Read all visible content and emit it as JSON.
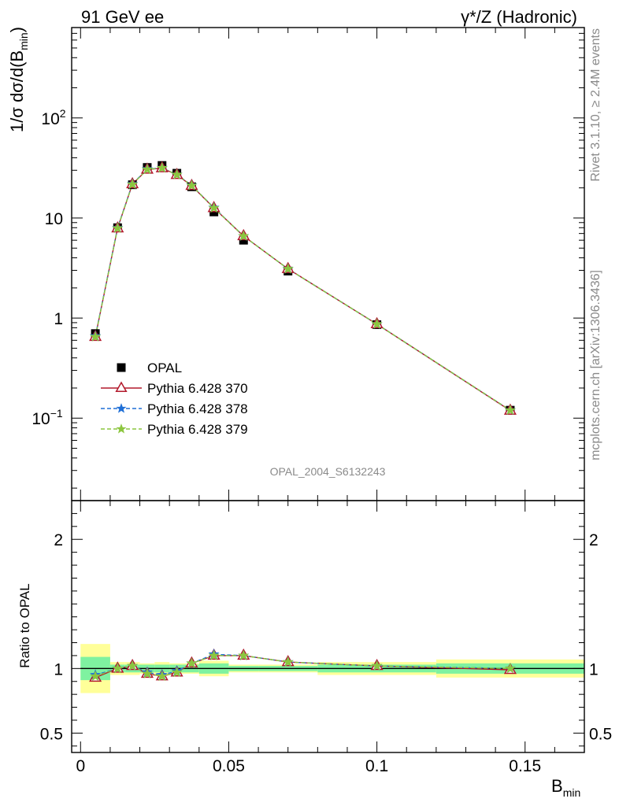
{
  "header": {
    "left": "91 GeV ee",
    "right": "γ*/Z (Hadronic)"
  },
  "side_text": {
    "upper": "Rivet 3.1.10, ≥ 2.4M events",
    "lower": "mcplots.cern.ch [arXiv:1306.3436]"
  },
  "watermark": "OPAL_2004_S6132243",
  "chart_data": [
    {
      "type": "scatter",
      "title": "",
      "ylabel": "1/σ dσ/d(B_min)",
      "yscale": "log",
      "ylim": [
        0.015,
        800
      ],
      "xlim": [
        -0.003,
        0.17
      ],
      "yticks": [
        {
          "value": 100,
          "label": "10",
          "sup": "2"
        },
        {
          "value": 10,
          "label": "10",
          "sup": ""
        },
        {
          "value": 1,
          "label": "1",
          "sup": ""
        },
        {
          "value": 0.1,
          "label": "10",
          "sup": "−1"
        }
      ],
      "legend_position": "middle-left",
      "x": [
        0.005,
        0.0125,
        0.0175,
        0.0225,
        0.0275,
        0.0325,
        0.0375,
        0.045,
        0.055,
        0.07,
        0.1,
        0.145
      ],
      "series": [
        {
          "name": "OPAL",
          "color": "#000000",
          "marker": "square",
          "line": "none",
          "values": [
            0.7,
            8.0,
            21.5,
            32.0,
            33.5,
            28.0,
            20.5,
            11.5,
            6.0,
            2.95,
            0.86,
            0.12
          ]
        },
        {
          "name": "Pythia 6.428 370",
          "color": "#b2182b",
          "marker": "triangle-open",
          "line": "solid",
          "values": [
            0.65,
            7.9,
            21.8,
            30.5,
            31.5,
            27.0,
            21.0,
            12.6,
            6.6,
            3.1,
            0.87,
            0.119
          ]
        },
        {
          "name": "Pythia 6.428 378",
          "color": "#1f6fd6",
          "marker": "star",
          "line": "dashed",
          "values": [
            0.66,
            7.95,
            21.9,
            30.8,
            31.7,
            27.2,
            21.2,
            12.7,
            6.6,
            3.1,
            0.87,
            0.12
          ]
        },
        {
          "name": "Pythia 6.428 379",
          "color": "#8cc63f",
          "marker": "star",
          "line": "dashed",
          "values": [
            0.65,
            7.9,
            21.7,
            30.6,
            31.6,
            27.1,
            21.1,
            12.6,
            6.6,
            3.1,
            0.87,
            0.12
          ]
        }
      ]
    },
    {
      "type": "scatter",
      "ylabel": "Ratio to OPAL",
      "xlabel": "B_min",
      "ylim": [
        0.35,
        2.3
      ],
      "xlim": [
        -0.003,
        0.17
      ],
      "yticks": [
        0.5,
        1,
        2
      ],
      "xticks": [
        0,
        0.05,
        0.1,
        0.15
      ],
      "x": [
        0.005,
        0.0125,
        0.0175,
        0.0225,
        0.0275,
        0.0325,
        0.0375,
        0.045,
        0.055,
        0.07,
        0.1,
        0.145
      ],
      "bins": [
        [
          0,
          0.01
        ],
        [
          0.01,
          0.015
        ],
        [
          0.015,
          0.02
        ],
        [
          0.02,
          0.025
        ],
        [
          0.025,
          0.03
        ],
        [
          0.03,
          0.035
        ],
        [
          0.035,
          0.04
        ],
        [
          0.04,
          0.05
        ],
        [
          0.05,
          0.06
        ],
        [
          0.06,
          0.08
        ],
        [
          0.08,
          0.12
        ],
        [
          0.12,
          0.17
        ]
      ],
      "band_stat": [
        0.09,
        0.03,
        0.03,
        0.03,
        0.03,
        0.03,
        0.03,
        0.04,
        0.02,
        0.02,
        0.03,
        0.04
      ],
      "band_total": [
        0.19,
        0.05,
        0.05,
        0.04,
        0.05,
        0.04,
        0.04,
        0.06,
        0.03,
        0.03,
        0.05,
        0.07
      ],
      "reference": 1,
      "series": [
        {
          "name": "Pythia 6.428 370",
          "color": "#b2182b",
          "marker": "triangle-open",
          "line": "solid",
          "values": [
            0.93,
            1.0,
            1.02,
            0.96,
            0.94,
            0.97,
            1.04,
            1.1,
            1.1,
            1.05,
            1.02,
            0.99
          ]
        },
        {
          "name": "Pythia 6.428 378",
          "color": "#1f6fd6",
          "marker": "star",
          "line": "dashed",
          "values": [
            0.95,
            1.0,
            1.02,
            0.97,
            0.95,
            0.98,
            1.04,
            1.11,
            1.1,
            1.05,
            1.02,
            1.0
          ]
        },
        {
          "name": "Pythia 6.428 379",
          "color": "#8cc63f",
          "marker": "star",
          "line": "dashed",
          "values": [
            0.94,
            1.0,
            1.02,
            0.96,
            0.94,
            0.97,
            1.04,
            1.1,
            1.1,
            1.05,
            1.02,
            1.0
          ]
        }
      ]
    }
  ]
}
